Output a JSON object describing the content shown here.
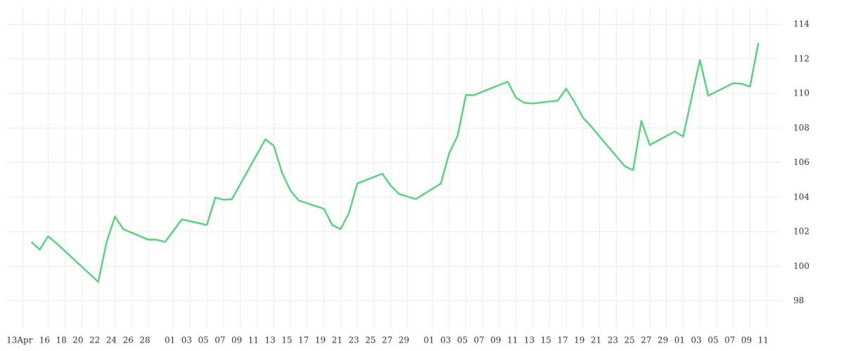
{
  "chart_data": {
    "type": "line",
    "x": [
      "Apr 14",
      "Apr 15",
      "Apr 16",
      "Apr 17",
      "Apr 22",
      "Apr 23",
      "Apr 24",
      "Apr 25",
      "Apr 28",
      "Apr 29",
      "Apr 30",
      "May 2",
      "May 5",
      "May 6",
      "May 7",
      "May 8",
      "May 12",
      "May 13",
      "May 14",
      "May 15",
      "May 16",
      "May 19",
      "May 20",
      "May 21",
      "May 22",
      "May 23",
      "May 26",
      "May 27",
      "May 28",
      "May 30",
      "Jun 2",
      "Jun 3",
      "Jun 4",
      "Jun 5",
      "Jun 6",
      "Jun 10",
      "Jun 11",
      "Jun 12",
      "Jun 13",
      "Jun 16",
      "Jun 17",
      "Jun 18",
      "Jun 19",
      "Jun 20",
      "Jun 24",
      "Jun 25",
      "Jun 26",
      "Jun 27",
      "Jun 30",
      "Jul 1",
      "Jul 3",
      "Jul 4",
      "Jul 7",
      "Jul 8",
      "Jul 9",
      "Jul 10"
    ],
    "series": [
      {
        "color": "#5ad37f",
        "values": [
          101.41,
          100.97,
          101.74,
          101.33,
          99.1,
          101.41,
          102.88,
          102.15,
          101.54,
          101.54,
          101.41,
          102.72,
          102.39,
          103.98,
          103.85,
          103.89,
          107.35,
          106.98,
          105.4,
          104.38,
          103.81,
          103.33,
          102.39,
          102.15,
          103.08,
          104.79,
          105.36,
          104.67,
          104.18,
          103.89,
          104.79,
          106.54,
          107.55,
          109.91,
          109.91,
          110.68,
          109.75,
          109.46,
          109.42,
          109.59,
          110.28,
          109.5,
          108.61,
          108.08,
          105.8,
          105.56,
          108.41,
          107.02,
          107.8,
          107.51,
          111.94,
          109.87,
          110.6,
          110.56,
          110.4,
          112.92
        ]
      }
    ],
    "xlim": [
      "Apr 11",
      "Jul 12"
    ],
    "xticks": [
      {
        "value": "Apr 13",
        "label": "13Apr"
      },
      {
        "value": "Apr 16",
        "label": "16"
      },
      {
        "value": "Apr 18",
        "label": "18"
      },
      {
        "value": "Apr 20",
        "label": "20"
      },
      {
        "value": "Apr 22",
        "label": "22"
      },
      {
        "value": "Apr 24",
        "label": "24"
      },
      {
        "value": "Apr 26",
        "label": "26"
      },
      {
        "value": "Apr 28",
        "label": "28"
      },
      {
        "value": "May 1",
        "label": "01"
      },
      {
        "value": "May 3",
        "label": "03"
      },
      {
        "value": "May 5",
        "label": "05"
      },
      {
        "value": "May 7",
        "label": "07"
      },
      {
        "value": "May 9",
        "label": "09"
      },
      {
        "value": "May 11",
        "label": "11"
      },
      {
        "value": "May 13",
        "label": "13"
      },
      {
        "value": "May 15",
        "label": "15"
      },
      {
        "value": "May 17",
        "label": "17"
      },
      {
        "value": "May 19",
        "label": "19"
      },
      {
        "value": "May 21",
        "label": "21"
      },
      {
        "value": "May 23",
        "label": "23"
      },
      {
        "value": "May 25",
        "label": "25"
      },
      {
        "value": "May 27",
        "label": "27"
      },
      {
        "value": "May 29",
        "label": "29"
      },
      {
        "value": "Jun 1",
        "label": "01"
      },
      {
        "value": "Jun 3",
        "label": "03"
      },
      {
        "value": "Jun 5",
        "label": "05"
      },
      {
        "value": "Jun 7",
        "label": "07"
      },
      {
        "value": "Jun 9",
        "label": "09"
      },
      {
        "value": "Jun 11",
        "label": "11"
      },
      {
        "value": "Jun 13",
        "label": "13"
      },
      {
        "value": "Jun 15",
        "label": "15"
      },
      {
        "value": "Jun 17",
        "label": "17"
      },
      {
        "value": "Jun 19",
        "label": "19"
      },
      {
        "value": "Jun 21",
        "label": "21"
      },
      {
        "value": "Jun 23",
        "label": "23"
      },
      {
        "value": "Jun 25",
        "label": "25"
      },
      {
        "value": "Jun 27",
        "label": "27"
      },
      {
        "value": "Jun 29",
        "label": "29"
      },
      {
        "value": "Jul 1",
        "label": "01"
      },
      {
        "value": "Jul 3",
        "label": "03"
      },
      {
        "value": "Jul 5",
        "label": "05"
      },
      {
        "value": "Jul 7",
        "label": "07"
      },
      {
        "value": "Jul 9",
        "label": "09"
      },
      {
        "value": "Jul 11",
        "label": "11"
      }
    ],
    "ylim": [
      96.4,
      115
    ],
    "yticks": [
      98,
      100,
      102,
      104,
      106,
      108,
      110,
      112,
      114
    ],
    "grid": true
  }
}
